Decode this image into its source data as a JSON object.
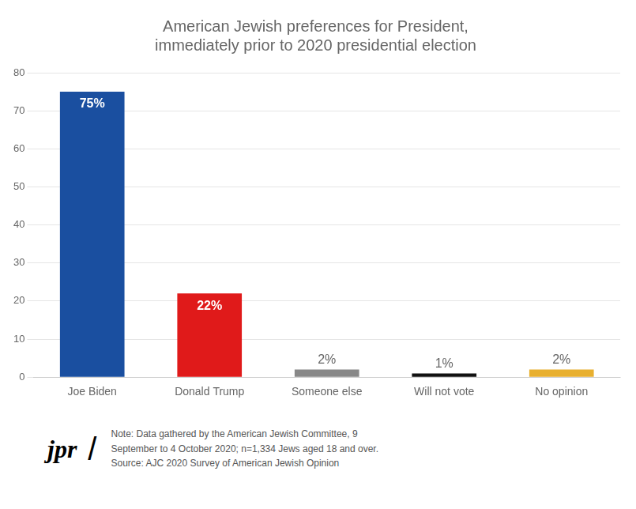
{
  "chart_data": {
    "type": "bar",
    "title": "American Jewish preferences for President,\nimmediately prior to 2020 presidential election",
    "categories": [
      "Joe Biden",
      "Donald Trump",
      "Someone else",
      "Will not vote",
      "No opinion"
    ],
    "values": [
      75,
      22,
      2,
      1,
      2
    ],
    "value_labels": [
      "75%",
      "22%",
      "2%",
      "1%",
      "2%"
    ],
    "colors": [
      "#1a4fa0",
      "#e01a1a",
      "#888888",
      "#111111",
      "#e8b030"
    ],
    "ylim": [
      0,
      80
    ],
    "yticks": [
      0,
      10,
      20,
      30,
      40,
      50,
      60,
      70,
      80
    ],
    "grid": true,
    "data_labels": true,
    "annotations": [
      "jpr",
      "/",
      "Note: Data gathered by the American Jewish Committee, 9\nSeptember to 4 October 2020; n=1,334 Jews aged 18 and over.\nSource: AJC 2020 Survey of American Jewish Opinion"
    ]
  }
}
